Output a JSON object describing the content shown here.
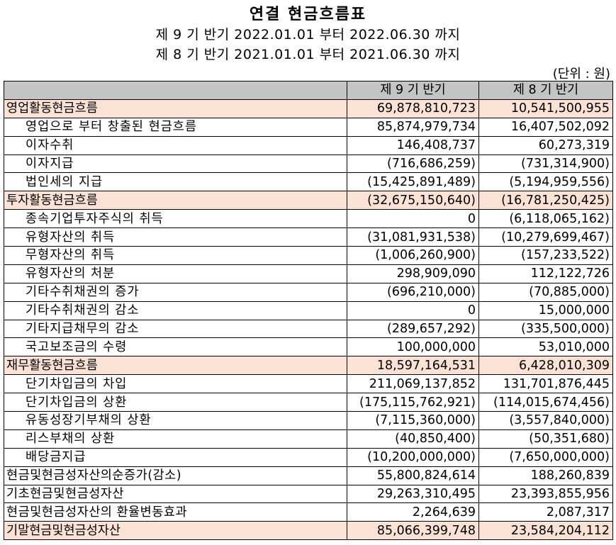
{
  "header": {
    "title": "연결 현금흐름표",
    "period_current": "제 9 기 반기 2022.01.01 부터 2022.06.30 까지",
    "period_prior": "제 8 기 반기 2021.01.01 부터 2021.06.30 까지",
    "unit": "(단위 : 원)"
  },
  "table": {
    "columns": [
      "",
      "제 9 기 반기",
      "제 8 기 반기"
    ],
    "rows": [
      {
        "label": "영업활동현금흐름",
        "current": "69,878,810,723",
        "prior": "10,541,500,955",
        "kind": "cat"
      },
      {
        "label": "영업으로 부터 창출된 현금흐름",
        "current": "85,874,979,734",
        "prior": "16,407,502,092",
        "kind": "sub"
      },
      {
        "label": "이자수취",
        "current": "146,408,737",
        "prior": "60,273,319",
        "kind": "sub"
      },
      {
        "label": "이자지급",
        "current": "(716,686,259)",
        "prior": "(731,314,900)",
        "kind": "sub"
      },
      {
        "label": "법인세의 지급",
        "current": "(15,425,891,489)",
        "prior": "(5,194,959,556)",
        "kind": "sub"
      },
      {
        "label": "투자활동현금흐름",
        "current": "(32,675,150,640)",
        "prior": "(16,781,250,425)",
        "kind": "cat"
      },
      {
        "label": "종속기업투자주식의 취득",
        "current": "0",
        "prior": "(6,118,065,162)",
        "kind": "sub"
      },
      {
        "label": "유형자산의 취득",
        "current": "(31,081,931,538)",
        "prior": "(10,279,699,467)",
        "kind": "sub"
      },
      {
        "label": "무형자산의 취득",
        "current": "(1,006,260,900)",
        "prior": "(157,233,522)",
        "kind": "sub"
      },
      {
        "label": "유형자산의 처분",
        "current": "298,909,090",
        "prior": "112,122,726",
        "kind": "sub"
      },
      {
        "label": "기타수취채권의 증가",
        "current": "(696,210,000)",
        "prior": "(70,885,000)",
        "kind": "sub"
      },
      {
        "label": "기타수취채권의 감소",
        "current": "0",
        "prior": "15,000,000",
        "kind": "sub"
      },
      {
        "label": "기타지급채무의 감소",
        "current": "(289,657,292)",
        "prior": "(335,500,000)",
        "kind": "sub"
      },
      {
        "label": "국고보조금의 수령",
        "current": "100,000,000",
        "prior": "53,010,000",
        "kind": "sub"
      },
      {
        "label": "재무활동현금흐름",
        "current": "18,597,164,531",
        "prior": "6,428,010,309",
        "kind": "cat"
      },
      {
        "label": "단기차입금의 차입",
        "current": "211,069,137,852",
        "prior": "131,701,876,445",
        "kind": "sub"
      },
      {
        "label": "단기차입금의 상환",
        "current": "(175,115,762,921)",
        "prior": "(114,015,674,456)",
        "kind": "sub"
      },
      {
        "label": "유동성장기부채의 상환",
        "current": "(7,115,360,000)",
        "prior": "(3,557,840,000)",
        "kind": "sub"
      },
      {
        "label": "리스부채의 상환",
        "current": "(40,850,400)",
        "prior": "(50,351,680)",
        "kind": "sub"
      },
      {
        "label": "배당금지급",
        "current": "(10,200,000,000)",
        "prior": "(7,650,000,000)",
        "kind": "sub"
      },
      {
        "label": "현금및현금성자산의순증가(감소)",
        "current": "55,800,824,614",
        "prior": "188,260,839",
        "kind": "top"
      },
      {
        "label": "기초현금및현금성자산",
        "current": "29,263,310,495",
        "prior": "23,393,855,956",
        "kind": "top"
      },
      {
        "label": "현금및현금성자산의 환율변동효과",
        "current": "2,264,639",
        "prior": "2,087,317",
        "kind": "top"
      },
      {
        "label": "기말현금및현금성자산",
        "current": "85,066,399,748",
        "prior": "23,584,204,112",
        "kind": "cat"
      }
    ]
  }
}
